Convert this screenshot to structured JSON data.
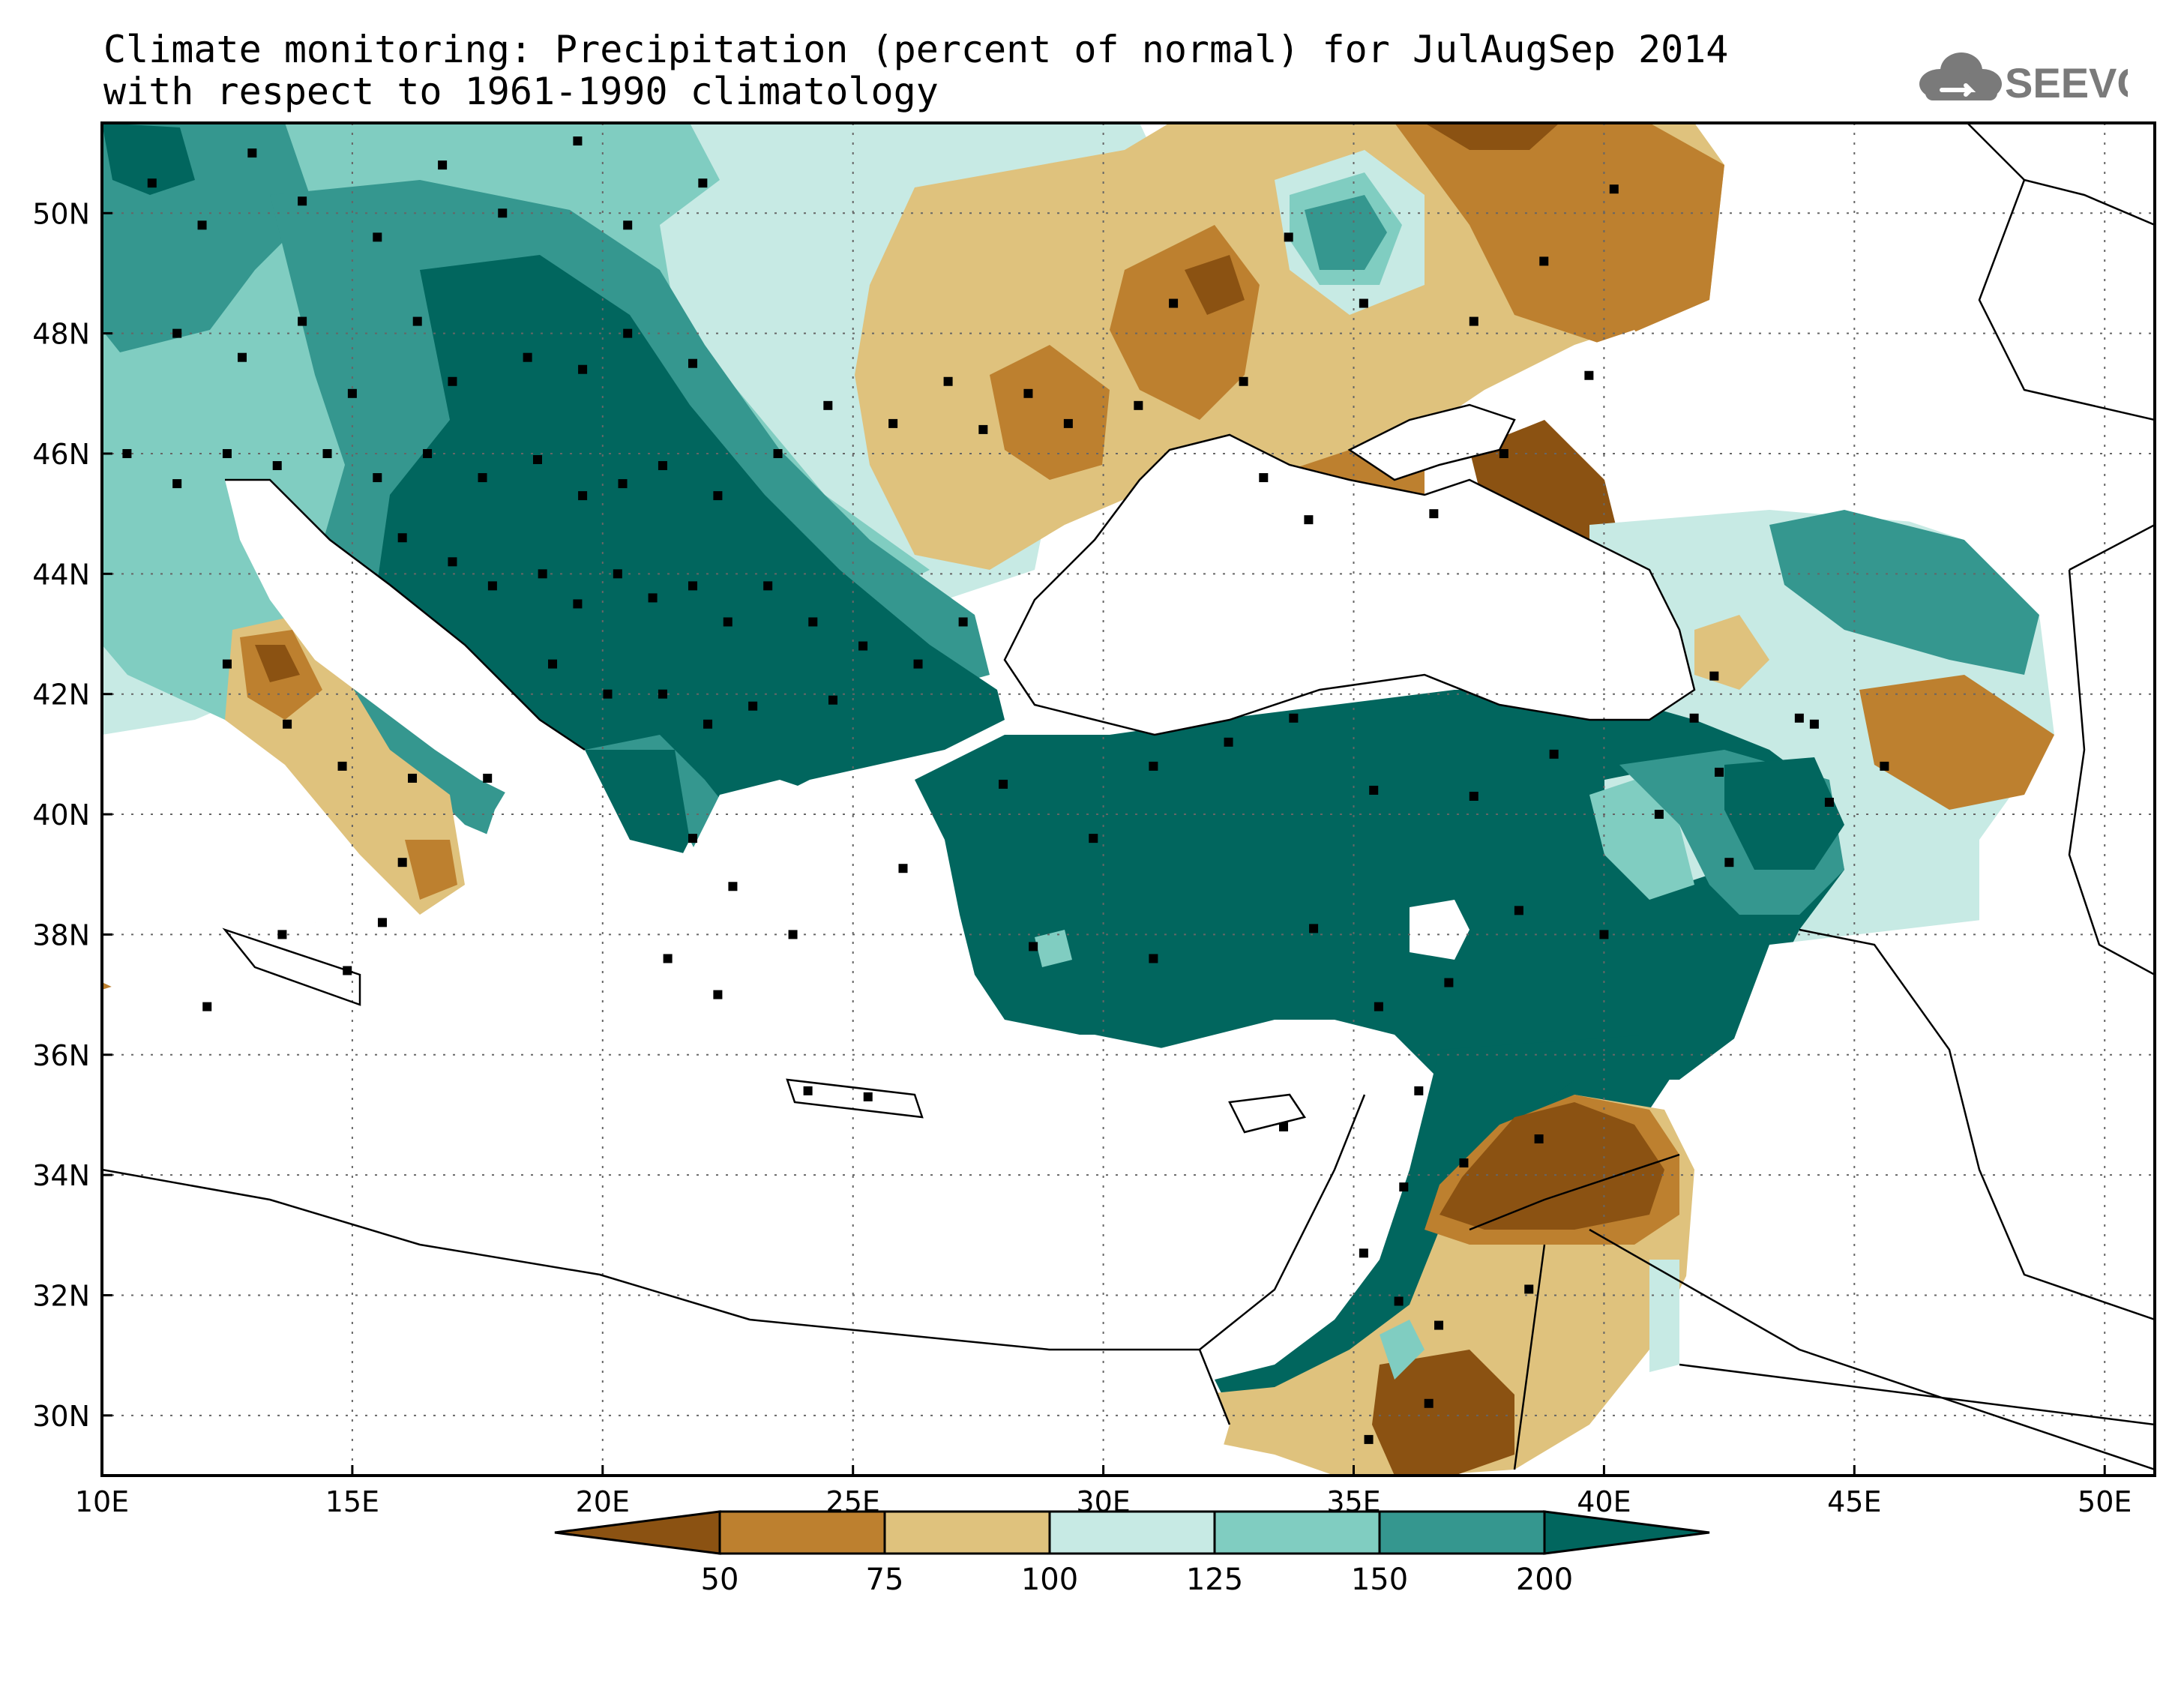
{
  "title_line1": "Climate monitoring: Precipitation (percent of normal) for JulAugSep 2014",
  "title_line2": "with respect to 1961-1990 climatology",
  "logo_text": "SEEVCCC",
  "logo_icon": "cloud-icon",
  "map": {
    "lon_range": [
      10,
      51
    ],
    "lat_range": [
      29,
      51.5
    ],
    "x_ticks": [
      "10E",
      "15E",
      "20E",
      "25E",
      "30E",
      "35E",
      "40E",
      "45E",
      "50E"
    ],
    "y_ticks": [
      "30N",
      "32N",
      "34N",
      "36N",
      "38N",
      "40N",
      "42N",
      "44N",
      "46N",
      "48N",
      "50N"
    ],
    "grid": "dotted"
  },
  "colorbar": {
    "levels": [
      "50",
      "75",
      "100",
      "125",
      "150",
      "200"
    ],
    "colors": [
      "#8b5212",
      "#bd802f",
      "#dfc27d",
      "#c7eae4",
      "#80cdc1",
      "#35978f",
      "#01665e"
    ]
  },
  "colors": {
    "very_dry": "#8b5212",
    "dry": "#bd802f",
    "slightly_dry": "#dfc27d",
    "slightly_wet": "#c7eae4",
    "wet": "#80cdc1",
    "very_wet": "#35978f",
    "extremely_wet": "#01665e"
  }
}
